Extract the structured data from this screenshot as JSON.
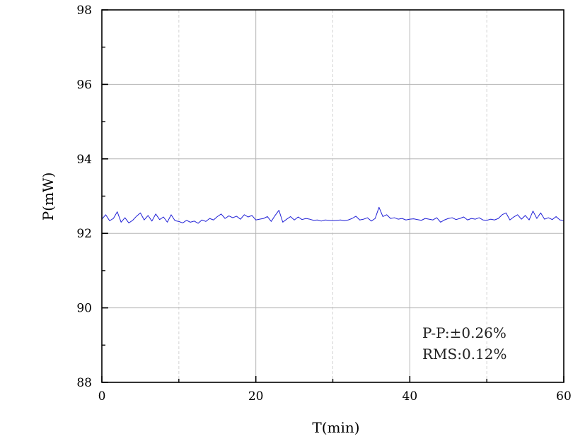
{
  "chart_data": {
    "type": "line",
    "title": "",
    "xlabel": "T(min)",
    "ylabel": "P(mW)",
    "xlim": [
      0,
      60
    ],
    "ylim": [
      88,
      98
    ],
    "xticks": [
      0,
      20,
      40,
      60
    ],
    "yticks": [
      88,
      90,
      92,
      94,
      96,
      98
    ],
    "grid": true,
    "legend": "none",
    "annotations": [
      "P-P:±0.26%",
      "RMS:0.12%"
    ],
    "series": [
      {
        "color": "#1f1fd6",
        "x": [
          0,
          0.5,
          1,
          1.5,
          2,
          2.5,
          3,
          3.5,
          4,
          4.5,
          5,
          5.5,
          6,
          6.5,
          7,
          7.5,
          8,
          8.5,
          9,
          9.5,
          10,
          10.5,
          11,
          11.5,
          12,
          12.5,
          13,
          13.5,
          14,
          14.5,
          15,
          15.5,
          16,
          16.5,
          17,
          17.5,
          18,
          18.5,
          19,
          19.5,
          20,
          20.5,
          21,
          21.5,
          22,
          22.5,
          23,
          23.5,
          24,
          24.5,
          25,
          25.5,
          26,
          26.5,
          27,
          27.5,
          28,
          28.5,
          29,
          29.5,
          30,
          30.5,
          31,
          31.5,
          32,
          32.5,
          33,
          33.5,
          34,
          34.5,
          35,
          35.5,
          36,
          36.5,
          37,
          37.5,
          38,
          38.5,
          39,
          39.5,
          40,
          40.5,
          41,
          41.5,
          42,
          42.5,
          43,
          43.5,
          44,
          44.5,
          45,
          45.5,
          46,
          46.5,
          47,
          47.5,
          48,
          48.5,
          49,
          49.5,
          50,
          50.5,
          51,
          51.5,
          52,
          52.5,
          53,
          53.5,
          54,
          54.5,
          55,
          55.5,
          56,
          56.5,
          57,
          57.5,
          58,
          58.5,
          59,
          59.5,
          60
        ],
        "y": [
          92.38,
          92.5,
          92.34,
          92.4,
          92.58,
          92.3,
          92.42,
          92.28,
          92.35,
          92.46,
          92.55,
          92.36,
          92.48,
          92.33,
          92.52,
          92.37,
          92.44,
          92.3,
          92.5,
          92.34,
          92.32,
          92.28,
          92.35,
          92.3,
          92.33,
          92.27,
          92.36,
          92.32,
          92.4,
          92.36,
          92.45,
          92.52,
          92.4,
          92.47,
          92.42,
          92.46,
          92.38,
          92.5,
          92.44,
          92.48,
          92.36,
          92.38,
          92.4,
          92.45,
          92.32,
          92.48,
          92.62,
          92.3,
          92.38,
          92.45,
          92.36,
          92.44,
          92.37,
          92.4,
          92.38,
          92.35,
          92.36,
          92.33,
          92.36,
          92.35,
          92.34,
          92.35,
          92.36,
          92.34,
          92.36,
          92.4,
          92.46,
          92.36,
          92.38,
          92.42,
          92.33,
          92.4,
          92.7,
          92.45,
          92.5,
          92.4,
          92.42,
          92.38,
          92.4,
          92.36,
          92.38,
          92.39,
          92.37,
          92.35,
          92.4,
          92.38,
          92.36,
          92.42,
          92.3,
          92.36,
          92.4,
          92.42,
          92.37,
          92.4,
          92.44,
          92.36,
          92.4,
          92.38,
          92.42,
          92.36,
          92.35,
          92.38,
          92.36,
          92.4,
          92.5,
          92.55,
          92.36,
          92.44,
          92.5,
          92.38,
          92.48,
          92.36,
          92.6,
          92.4,
          92.55,
          92.38,
          92.42,
          92.37,
          92.45,
          92.36,
          92.35
        ]
      }
    ]
  }
}
